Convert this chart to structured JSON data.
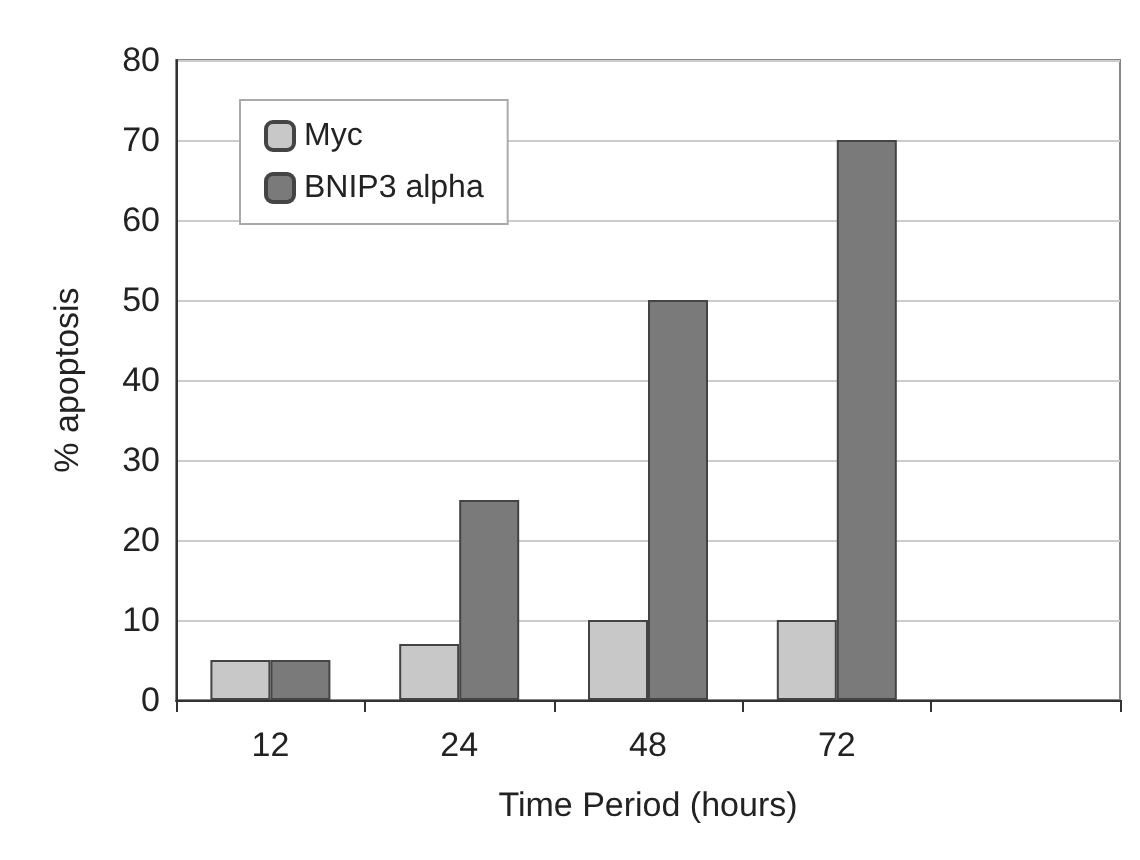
{
  "chart_data": {
    "type": "bar",
    "xlabel": "Time Period (hours)",
    "ylabel": "% apoptosis",
    "categories": [
      "12",
      "24",
      "48",
      "72",
      null
    ],
    "series": [
      {
        "name": "Myc",
        "color": "#c8c8c8",
        "values": [
          5,
          7,
          10,
          10,
          null
        ]
      },
      {
        "name": "BNIP3 alpha",
        "color": "#7a7a7a",
        "values": [
          5,
          25,
          50,
          70,
          null
        ]
      }
    ],
    "ylim": [
      0,
      80
    ],
    "yticks": [
      0,
      10,
      20,
      30,
      40,
      50,
      60,
      70,
      80
    ],
    "grid": "y",
    "legend": "top left"
  }
}
